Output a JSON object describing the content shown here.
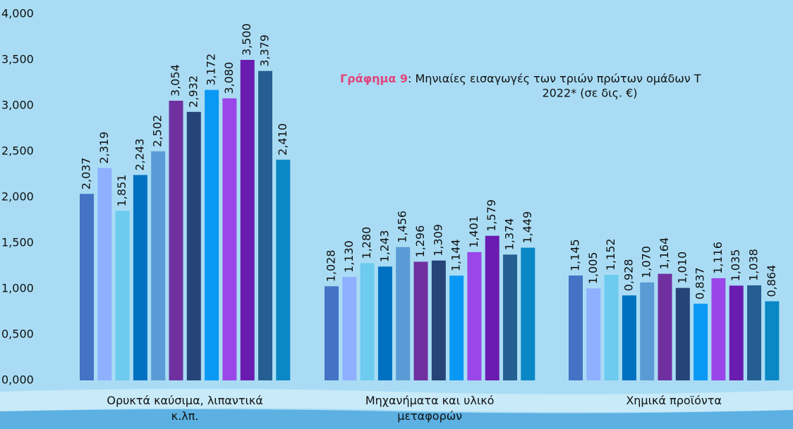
{
  "chart_data": {
    "type": "bar",
    "title_label": "Γράφημα 9",
    "title": ": Μηνιαίες εισαγωγές των τριών πρώτων ομάδων Τ",
    "title_line2": "2022* (σε δις. €)",
    "categories": [
      "Ορυκτά καύσιμα, λιπαντικά κ.λπ.",
      "Μηχανήματα και υλικό μεταφορών",
      "Χημικά προϊόντα"
    ],
    "series": [
      {
        "color": "#4472c4",
        "values": [
          2.037,
          1.028,
          1.145
        ],
        "value_labels": [
          "2,037",
          "1,028",
          "1,145"
        ]
      },
      {
        "color": "#8fb0ff",
        "values": [
          2.319,
          1.13,
          1.005
        ],
        "value_labels": [
          "2,319",
          "1,130",
          "1,005"
        ]
      },
      {
        "color": "#6ccbef",
        "values": [
          1.851,
          1.28,
          1.152
        ],
        "value_labels": [
          "1,851",
          "1,280",
          "1,152"
        ]
      },
      {
        "color": "#0070c0",
        "values": [
          2.243,
          1.243,
          0.928
        ],
        "value_labels": [
          "2,243",
          "1,243",
          "0,928"
        ]
      },
      {
        "color": "#5b9bd5",
        "values": [
          2.502,
          1.456,
          1.07
        ],
        "value_labels": [
          "2,502",
          "1,456",
          "1,070"
        ]
      },
      {
        "color": "#7030a0",
        "values": [
          3.054,
          1.296,
          1.164
        ],
        "value_labels": [
          "3,054",
          "1,296",
          "1,164"
        ]
      },
      {
        "color": "#264478",
        "values": [
          2.932,
          1.309,
          1.01
        ],
        "value_labels": [
          "2,932",
          "1,309",
          "1,010"
        ]
      },
      {
        "color": "#0a98f5",
        "values": [
          3.172,
          1.144,
          0.837
        ],
        "value_labels": [
          "3,172",
          "1,144",
          "0,837"
        ]
      },
      {
        "color": "#9a46e8",
        "values": [
          3.08,
          1.401,
          1.116
        ],
        "value_labels": [
          "3,080",
          "1,401",
          "1,116"
        ]
      },
      {
        "color": "#6a1bb0",
        "values": [
          3.5,
          1.579,
          1.035
        ],
        "value_labels": [
          "3,500",
          "1,579",
          "1,035"
        ]
      },
      {
        "color": "#255e91",
        "values": [
          3.379,
          1.374,
          1.038
        ],
        "value_labels": [
          "3,379",
          "1,374",
          "1,038"
        ]
      },
      {
        "color": "#0a88c6",
        "values": [
          2.41,
          1.449,
          0.864
        ],
        "value_labels": [
          "2,410",
          "1,449",
          "0,864"
        ]
      }
    ],
    "ylim": [
      0,
      4
    ],
    "yticks": [
      {
        "value": 0,
        "label": "0,000"
      },
      {
        "value": 0.5,
        "label": "0,500"
      },
      {
        "value": 1,
        "label": "1,000"
      },
      {
        "value": 1.5,
        "label": "1,500"
      },
      {
        "value": 2,
        "label": "2,000"
      },
      {
        "value": 2.5,
        "label": "2,500"
      },
      {
        "value": 3,
        "label": "3,000"
      },
      {
        "value": 3.5,
        "label": "3,500"
      },
      {
        "value": 4,
        "label": "4,000"
      }
    ],
    "grid": false
  }
}
